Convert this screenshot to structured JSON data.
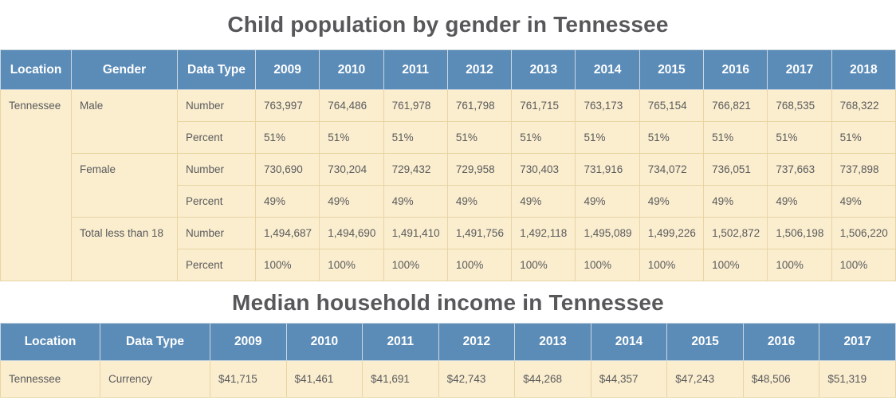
{
  "colors": {
    "header_background": "#5b8cb8",
    "header_text": "#ffffff",
    "header_border": "#ccd7e0",
    "cell_background": "#fbeecf",
    "cell_border": "#e8d5a2",
    "cell_text": "#5a5a5c",
    "title_text": "#58585a"
  },
  "chart_data": [
    {
      "type": "table",
      "title": "Child population by gender in Tennessee",
      "columns": [
        "Location",
        "Gender",
        "Data Type",
        "2009",
        "2010",
        "2011",
        "2012",
        "2013",
        "2014",
        "2015",
        "2016",
        "2017",
        "2018"
      ],
      "location": "Tennessee",
      "row_groups": [
        {
          "gender": "Male",
          "rows": [
            {
              "data_type": "Number",
              "values": [
                "763,997",
                "764,486",
                "761,978",
                "761,798",
                "761,715",
                "763,173",
                "765,154",
                "766,821",
                "768,535",
                "768,322"
              ]
            },
            {
              "data_type": "Percent",
              "values": [
                "51%",
                "51%",
                "51%",
                "51%",
                "51%",
                "51%",
                "51%",
                "51%",
                "51%",
                "51%"
              ]
            }
          ]
        },
        {
          "gender": "Female",
          "rows": [
            {
              "data_type": "Number",
              "values": [
                "730,690",
                "730,204",
                "729,432",
                "729,958",
                "730,403",
                "731,916",
                "734,072",
                "736,051",
                "737,663",
                "737,898"
              ]
            },
            {
              "data_type": "Percent",
              "values": [
                "49%",
                "49%",
                "49%",
                "49%",
                "49%",
                "49%",
                "49%",
                "49%",
                "49%",
                "49%"
              ]
            }
          ]
        },
        {
          "gender": "Total less than 18",
          "rows": [
            {
              "data_type": "Number",
              "values": [
                "1,494,687",
                "1,494,690",
                "1,491,410",
                "1,491,756",
                "1,492,118",
                "1,495,089",
                "1,499,226",
                "1,502,872",
                "1,506,198",
                "1,506,220"
              ]
            },
            {
              "data_type": "Percent",
              "values": [
                "100%",
                "100%",
                "100%",
                "100%",
                "100%",
                "100%",
                "100%",
                "100%",
                "100%",
                "100%"
              ]
            }
          ]
        }
      ]
    },
    {
      "type": "table",
      "title": "Median household income in Tennessee",
      "columns": [
        "Location",
        "Data Type",
        "2009",
        "2010",
        "2011",
        "2012",
        "2013",
        "2014",
        "2015",
        "2016",
        "2017"
      ],
      "rows": [
        {
          "location": "Tennessee",
          "data_type": "Currency",
          "values": [
            "$41,715",
            "$41,461",
            "$41,691",
            "$42,743",
            "$44,268",
            "$44,357",
            "$47,243",
            "$48,506",
            "$51,319"
          ]
        }
      ]
    }
  ]
}
